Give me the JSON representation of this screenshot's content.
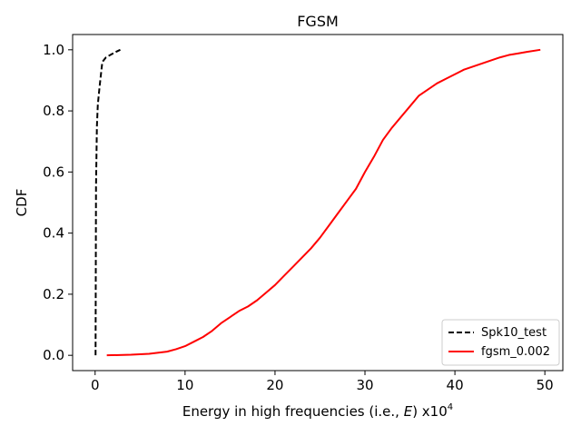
{
  "chart_data": {
    "type": "line",
    "title": "FGSM",
    "xlabel_prefix": "Energy in high frequencies (i.e., ",
    "xlabel_var": "E",
    "xlabel_suffix": ") x10",
    "xlabel_exp": "4",
    "ylabel": "CDF",
    "xlim": [
      -2.5,
      52
    ],
    "ylim": [
      -0.05,
      1.05
    ],
    "xticks": [
      0,
      10,
      20,
      30,
      40,
      50
    ],
    "yticks": [
      0.0,
      0.2,
      0.4,
      0.6,
      0.8,
      1.0
    ],
    "xtick_labels": [
      "0",
      "10",
      "20",
      "30",
      "40",
      "50"
    ],
    "ytick_labels": [
      "0.0",
      "0.2",
      "0.4",
      "0.6",
      "0.8",
      "1.0"
    ],
    "legend_position": "bottom-right",
    "series": [
      {
        "name": "Spk10_test",
        "color": "#000000",
        "dash": "dashed",
        "x": [
          0.05,
          0.1,
          0.2,
          0.3,
          0.5,
          0.8,
          1.2,
          1.8,
          2.3,
          2.8
        ],
        "y": [
          0.0,
          0.55,
          0.75,
          0.82,
          0.88,
          0.96,
          0.975,
          0.985,
          0.993,
          1.0
        ]
      },
      {
        "name": "fgsm_0.002",
        "color": "#ff0000",
        "dash": "solid",
        "x": [
          1.3,
          4,
          6,
          8,
          9,
          10,
          11,
          12,
          13,
          14,
          15,
          16,
          17,
          18,
          19,
          20,
          21,
          22,
          23,
          24,
          25,
          26,
          27,
          28,
          29,
          30,
          31,
          32,
          33,
          34,
          35,
          36,
          37,
          38,
          39,
          40,
          41,
          42,
          43,
          44,
          45,
          46,
          47,
          48,
          49.5
        ],
        "y": [
          0.0,
          0.002,
          0.005,
          0.012,
          0.02,
          0.03,
          0.045,
          0.06,
          0.08,
          0.105,
          0.125,
          0.145,
          0.16,
          0.18,
          0.205,
          0.23,
          0.26,
          0.29,
          0.32,
          0.35,
          0.385,
          0.425,
          0.465,
          0.505,
          0.545,
          0.6,
          0.65,
          0.705,
          0.745,
          0.78,
          0.815,
          0.85,
          0.87,
          0.89,
          0.905,
          0.92,
          0.935,
          0.945,
          0.955,
          0.965,
          0.975,
          0.983,
          0.988,
          0.993,
          1.0
        ]
      }
    ]
  }
}
